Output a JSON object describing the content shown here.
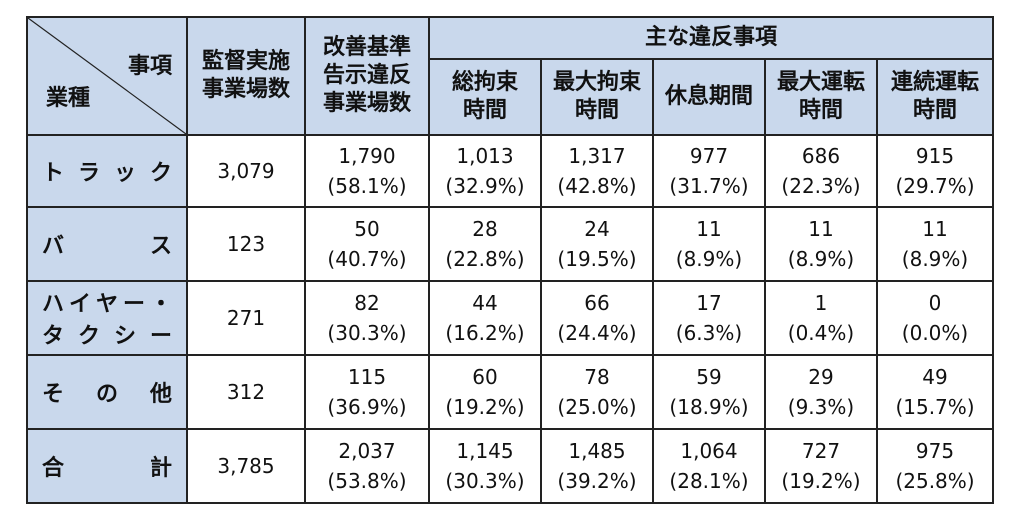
{
  "corner": {
    "top_right": "事項",
    "bottom_left": "業種"
  },
  "headers": {
    "inspected": [
      "監督実施",
      "事業場数"
    ],
    "violations": [
      "改善基準",
      "告示違反",
      "事業場数"
    ],
    "main_violations": "主な違反事項",
    "sub": [
      [
        "総拘束",
        "時間"
      ],
      [
        "最大拘束",
        "時間"
      ],
      [
        "休息期間"
      ],
      [
        "最大運転",
        "時間"
      ],
      [
        "連続運転",
        "時間"
      ]
    ]
  },
  "rows": [
    {
      "label_chars": [
        "ト",
        "ラ",
        "ッ",
        "ク"
      ],
      "inspected": "3,079",
      "violations": {
        "count": "1,790",
        "pct": "(58.1%)"
      },
      "items": [
        {
          "count": "1,013",
          "pct": "(32.9%)"
        },
        {
          "count": "1,317",
          "pct": "(42.8%)"
        },
        {
          "count": "977",
          "pct": "(31.7%)"
        },
        {
          "count": "686",
          "pct": "(22.3%)"
        },
        {
          "count": "915",
          "pct": "(29.7%)"
        }
      ]
    },
    {
      "label_chars": [
        "バ",
        "ス"
      ],
      "inspected": "123",
      "violations": {
        "count": "50",
        "pct": "(40.7%)"
      },
      "items": [
        {
          "count": "28",
          "pct": "(22.8%)"
        },
        {
          "count": "24",
          "pct": "(19.5%)"
        },
        {
          "count": "11",
          "pct": "(8.9%)"
        },
        {
          "count": "11",
          "pct": "(8.9%)"
        },
        {
          "count": "11",
          "pct": "(8.9%)"
        }
      ]
    },
    {
      "label_lines": [
        [
          "ハ",
          "イ",
          "ヤ",
          "ー",
          "・"
        ],
        [
          "タ",
          "ク",
          "シ",
          "ー"
        ]
      ],
      "inspected": "271",
      "violations": {
        "count": "82",
        "pct": "(30.3%)"
      },
      "items": [
        {
          "count": "44",
          "pct": "(16.2%)"
        },
        {
          "count": "66",
          "pct": "(24.4%)"
        },
        {
          "count": "17",
          "pct": "(6.3%)"
        },
        {
          "count": "1",
          "pct": "(0.4%)"
        },
        {
          "count": "0",
          "pct": "(0.0%)"
        }
      ]
    },
    {
      "label_chars": [
        "そ",
        "の",
        "他"
      ],
      "inspected": "312",
      "violations": {
        "count": "115",
        "pct": "(36.9%)"
      },
      "items": [
        {
          "count": "60",
          "pct": "(19.2%)"
        },
        {
          "count": "78",
          "pct": "(25.0%)"
        },
        {
          "count": "59",
          "pct": "(18.9%)"
        },
        {
          "count": "29",
          "pct": "(9.3%)"
        },
        {
          "count": "49",
          "pct": "(15.7%)"
        }
      ]
    },
    {
      "label_chars": [
        "合",
        "計"
      ],
      "inspected": "3,785",
      "violations": {
        "count": "2,037",
        "pct": "(53.8%)"
      },
      "items": [
        {
          "count": "1,145",
          "pct": "(30.3%)"
        },
        {
          "count": "1,485",
          "pct": "(39.2%)"
        },
        {
          "count": "1,064",
          "pct": "(28.1%)"
        },
        {
          "count": "727",
          "pct": "(19.2%)"
        },
        {
          "count": "975",
          "pct": "(25.8%)"
        }
      ]
    }
  ],
  "colors": {
    "header_bg": "#c9d8ec",
    "border": "#222222"
  }
}
